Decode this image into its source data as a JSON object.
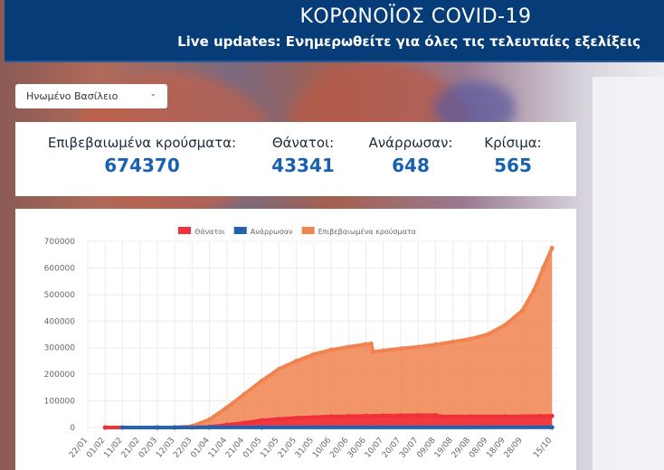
{
  "header": {
    "title": "ΚΟΡΩΝΟΪΟΣ COVID-19",
    "subtitle": "Live updates: Ενημερωθείτε για όλες τις τελευταίες εξελίξεις"
  },
  "country_select": {
    "value": "Ηνωμένο Βασίλειο",
    "icon": "chevron-down-icon"
  },
  "stats": [
    {
      "label": "Επιβεβαιωμένα κρούσματα:",
      "value": "674370"
    },
    {
      "label": "Θάνατοι:",
      "value": "43341"
    },
    {
      "label": "Ανάρρωσαν:",
      "value": "648"
    },
    {
      "label": "Κρίσιμα:",
      "value": "565"
    }
  ],
  "chart_data": {
    "type": "area",
    "legend_position": "top",
    "grid": true,
    "ylim": [
      0,
      700000
    ],
    "y_ticks": [
      0,
      100000,
      200000,
      300000,
      400000,
      500000,
      600000,
      700000
    ],
    "x_ticks": [
      "22/01",
      "01/02",
      "11/02",
      "21/02",
      "02/03",
      "12/03",
      "22/03",
      "01/04",
      "11/04",
      "21/04",
      "01/05",
      "11/05",
      "21/05",
      "31/05",
      "10/06",
      "20/06",
      "30/06",
      "10/07",
      "20/07",
      "30/07",
      "09/08",
      "19/08",
      "29/08",
      "08/09",
      "18/09",
      "28/09",
      "15/10"
    ],
    "series": [
      {
        "name": "Θάνατοι",
        "color": "#f0303a",
        "points": [
          [
            "01/02",
            0
          ],
          [
            "02/03",
            0
          ],
          [
            "12/03",
            100
          ],
          [
            "22/03",
            300
          ],
          [
            "01/04",
            2500
          ],
          [
            "11/04",
            10000
          ],
          [
            "21/04",
            17000
          ],
          [
            "01/05",
            27000
          ],
          [
            "11/05",
            32000
          ],
          [
            "21/05",
            36000
          ],
          [
            "31/05",
            38500
          ],
          [
            "10/06",
            41000
          ],
          [
            "20/06",
            42500
          ],
          [
            "30/06",
            43500
          ],
          [
            "10/07",
            44800
          ],
          [
            "20/07",
            45500
          ],
          [
            "30/07",
            46000
          ],
          [
            "09/08",
            46500
          ],
          [
            "12/08",
            41400
          ],
          [
            "29/08",
            41500
          ],
          [
            "18/09",
            41800
          ],
          [
            "28/09",
            42000
          ],
          [
            "08/10",
            43000
          ],
          [
            "15/10",
            43341
          ]
        ]
      },
      {
        "name": "Ανάρρωσαν",
        "color": "#1f63b4",
        "points": [
          [
            "11/02",
            0
          ],
          [
            "02/03",
            0
          ],
          [
            "12/03",
            0
          ],
          [
            "01/04",
            300
          ],
          [
            "01/05",
            400
          ],
          [
            "15/10",
            648
          ]
        ]
      },
      {
        "name": "Επιβεβαιωμένα κρούσματα",
        "color": "#f0834f",
        "points": [
          [
            "01/02",
            0
          ],
          [
            "02/03",
            0
          ],
          [
            "12/03",
            500
          ],
          [
            "22/03",
            5000
          ],
          [
            "01/04",
            30000
          ],
          [
            "11/04",
            75000
          ],
          [
            "21/04",
            125000
          ],
          [
            "01/05",
            175000
          ],
          [
            "11/05",
            220000
          ],
          [
            "21/05",
            250000
          ],
          [
            "31/05",
            275000
          ],
          [
            "10/06",
            292000
          ],
          [
            "20/06",
            303000
          ],
          [
            "30/06",
            313000
          ],
          [
            "03/07",
            315000
          ],
          [
            "04/07",
            285000
          ],
          [
            "10/07",
            289000
          ],
          [
            "20/07",
            297000
          ],
          [
            "30/07",
            303000
          ],
          [
            "09/08",
            312000
          ],
          [
            "19/08",
            322000
          ],
          [
            "29/08",
            333000
          ],
          [
            "08/09",
            350000
          ],
          [
            "18/09",
            385000
          ],
          [
            "28/09",
            440000
          ],
          [
            "05/10",
            520000
          ],
          [
            "10/10",
            600000
          ],
          [
            "15/10",
            674370
          ]
        ]
      }
    ]
  }
}
